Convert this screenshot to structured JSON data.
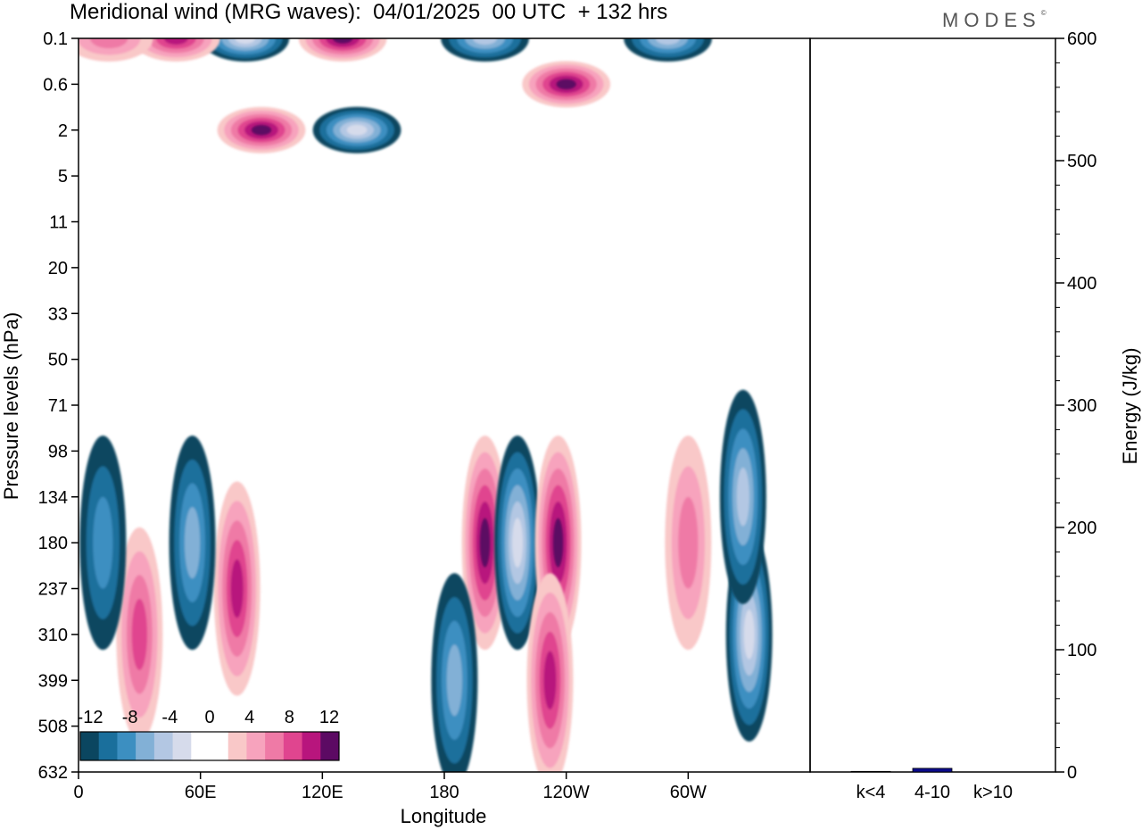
{
  "title": "Meridional wind (MRG waves):  04/01/2025  00 UTC  + 132 hrs",
  "logo": "MODES",
  "colors": {
    "neg": [
      "#0b4660",
      "#1a6f9c",
      "#3c8fc1",
      "#82b0d6",
      "#b3c7e3",
      "#d6dbeb"
    ],
    "pos": [
      "#f9c8c8",
      "#f7a3bd",
      "#ef7aa6",
      "#e0458f",
      "#b8157d",
      "#5c0a63"
    ],
    "bar": "#0a0a8c"
  },
  "chart_data": [
    {
      "type": "heatmap",
      "title": "Meridional wind (MRG waves):  04/01/2025  00 UTC  + 132 hrs",
      "xlabel": "Longitude",
      "ylabel": "Pressure levels (hPa)",
      "x_tick_labels": [
        "0",
        "60E",
        "120E",
        "180",
        "120W",
        "60W"
      ],
      "y_tick_labels": [
        "0.1",
        "0.6",
        "2",
        "5",
        "11",
        "20",
        "33",
        "50",
        "71",
        "98",
        "134",
        "180",
        "237",
        "310",
        "399",
        "508",
        "632"
      ],
      "colorbar": {
        "labels": [
          "-12",
          "-8",
          "-4",
          "0",
          "4",
          "8",
          "12"
        ],
        "levels": [
          -14,
          -12,
          -10,
          -8,
          -6,
          -4,
          -2,
          2,
          4,
          6,
          8,
          10,
          12,
          14
        ]
      },
      "features": [
        {
          "lon": 200,
          "level": "180",
          "value": 14
        },
        {
          "lon": 216,
          "level": "180",
          "value": -14
        },
        {
          "lon": 236,
          "level": "180",
          "value": 12
        },
        {
          "lon": 232,
          "level": "399",
          "value": 10
        },
        {
          "lon": 330,
          "level": "310",
          "value": -12
        },
        {
          "lon": 327,
          "level": "134",
          "value": -9
        },
        {
          "lon": 78,
          "level": "237",
          "value": 10
        },
        {
          "lon": 30,
          "level": "310",
          "value": 8
        },
        {
          "lon": 56,
          "level": "180",
          "value": -7
        },
        {
          "lon": 12,
          "level": "180",
          "value": -5
        },
        {
          "lon": 185,
          "level": "399",
          "value": -8
        },
        {
          "lon": 300,
          "level": "180",
          "value": 6
        },
        {
          "lon": 90,
          "level": "2",
          "value": 13
        },
        {
          "lon": 137,
          "level": "2",
          "value": -12
        },
        {
          "lon": 130,
          "level": "0.1",
          "value": 14
        },
        {
          "lon": 82,
          "level": "0.1",
          "value": -13
        },
        {
          "lon": 240,
          "level": "0.6",
          "value": 12
        },
        {
          "lon": 290,
          "level": "0.1",
          "value": -10
        },
        {
          "lon": 200,
          "level": "0.1",
          "value": -9
        },
        {
          "lon": 48,
          "level": "0.1",
          "value": 9
        },
        {
          "lon": 15,
          "level": "0.1",
          "value": 6
        }
      ]
    },
    {
      "type": "bar",
      "ylabel": "Energy (J/kg)",
      "categories": [
        "k<4",
        "4-10",
        "k>10"
      ],
      "values": [
        0.5,
        3,
        0
      ],
      "ylim": [
        0,
        600
      ],
      "yticks": [
        "0",
        "100",
        "200",
        "300",
        "400",
        "500",
        "600"
      ]
    }
  ]
}
